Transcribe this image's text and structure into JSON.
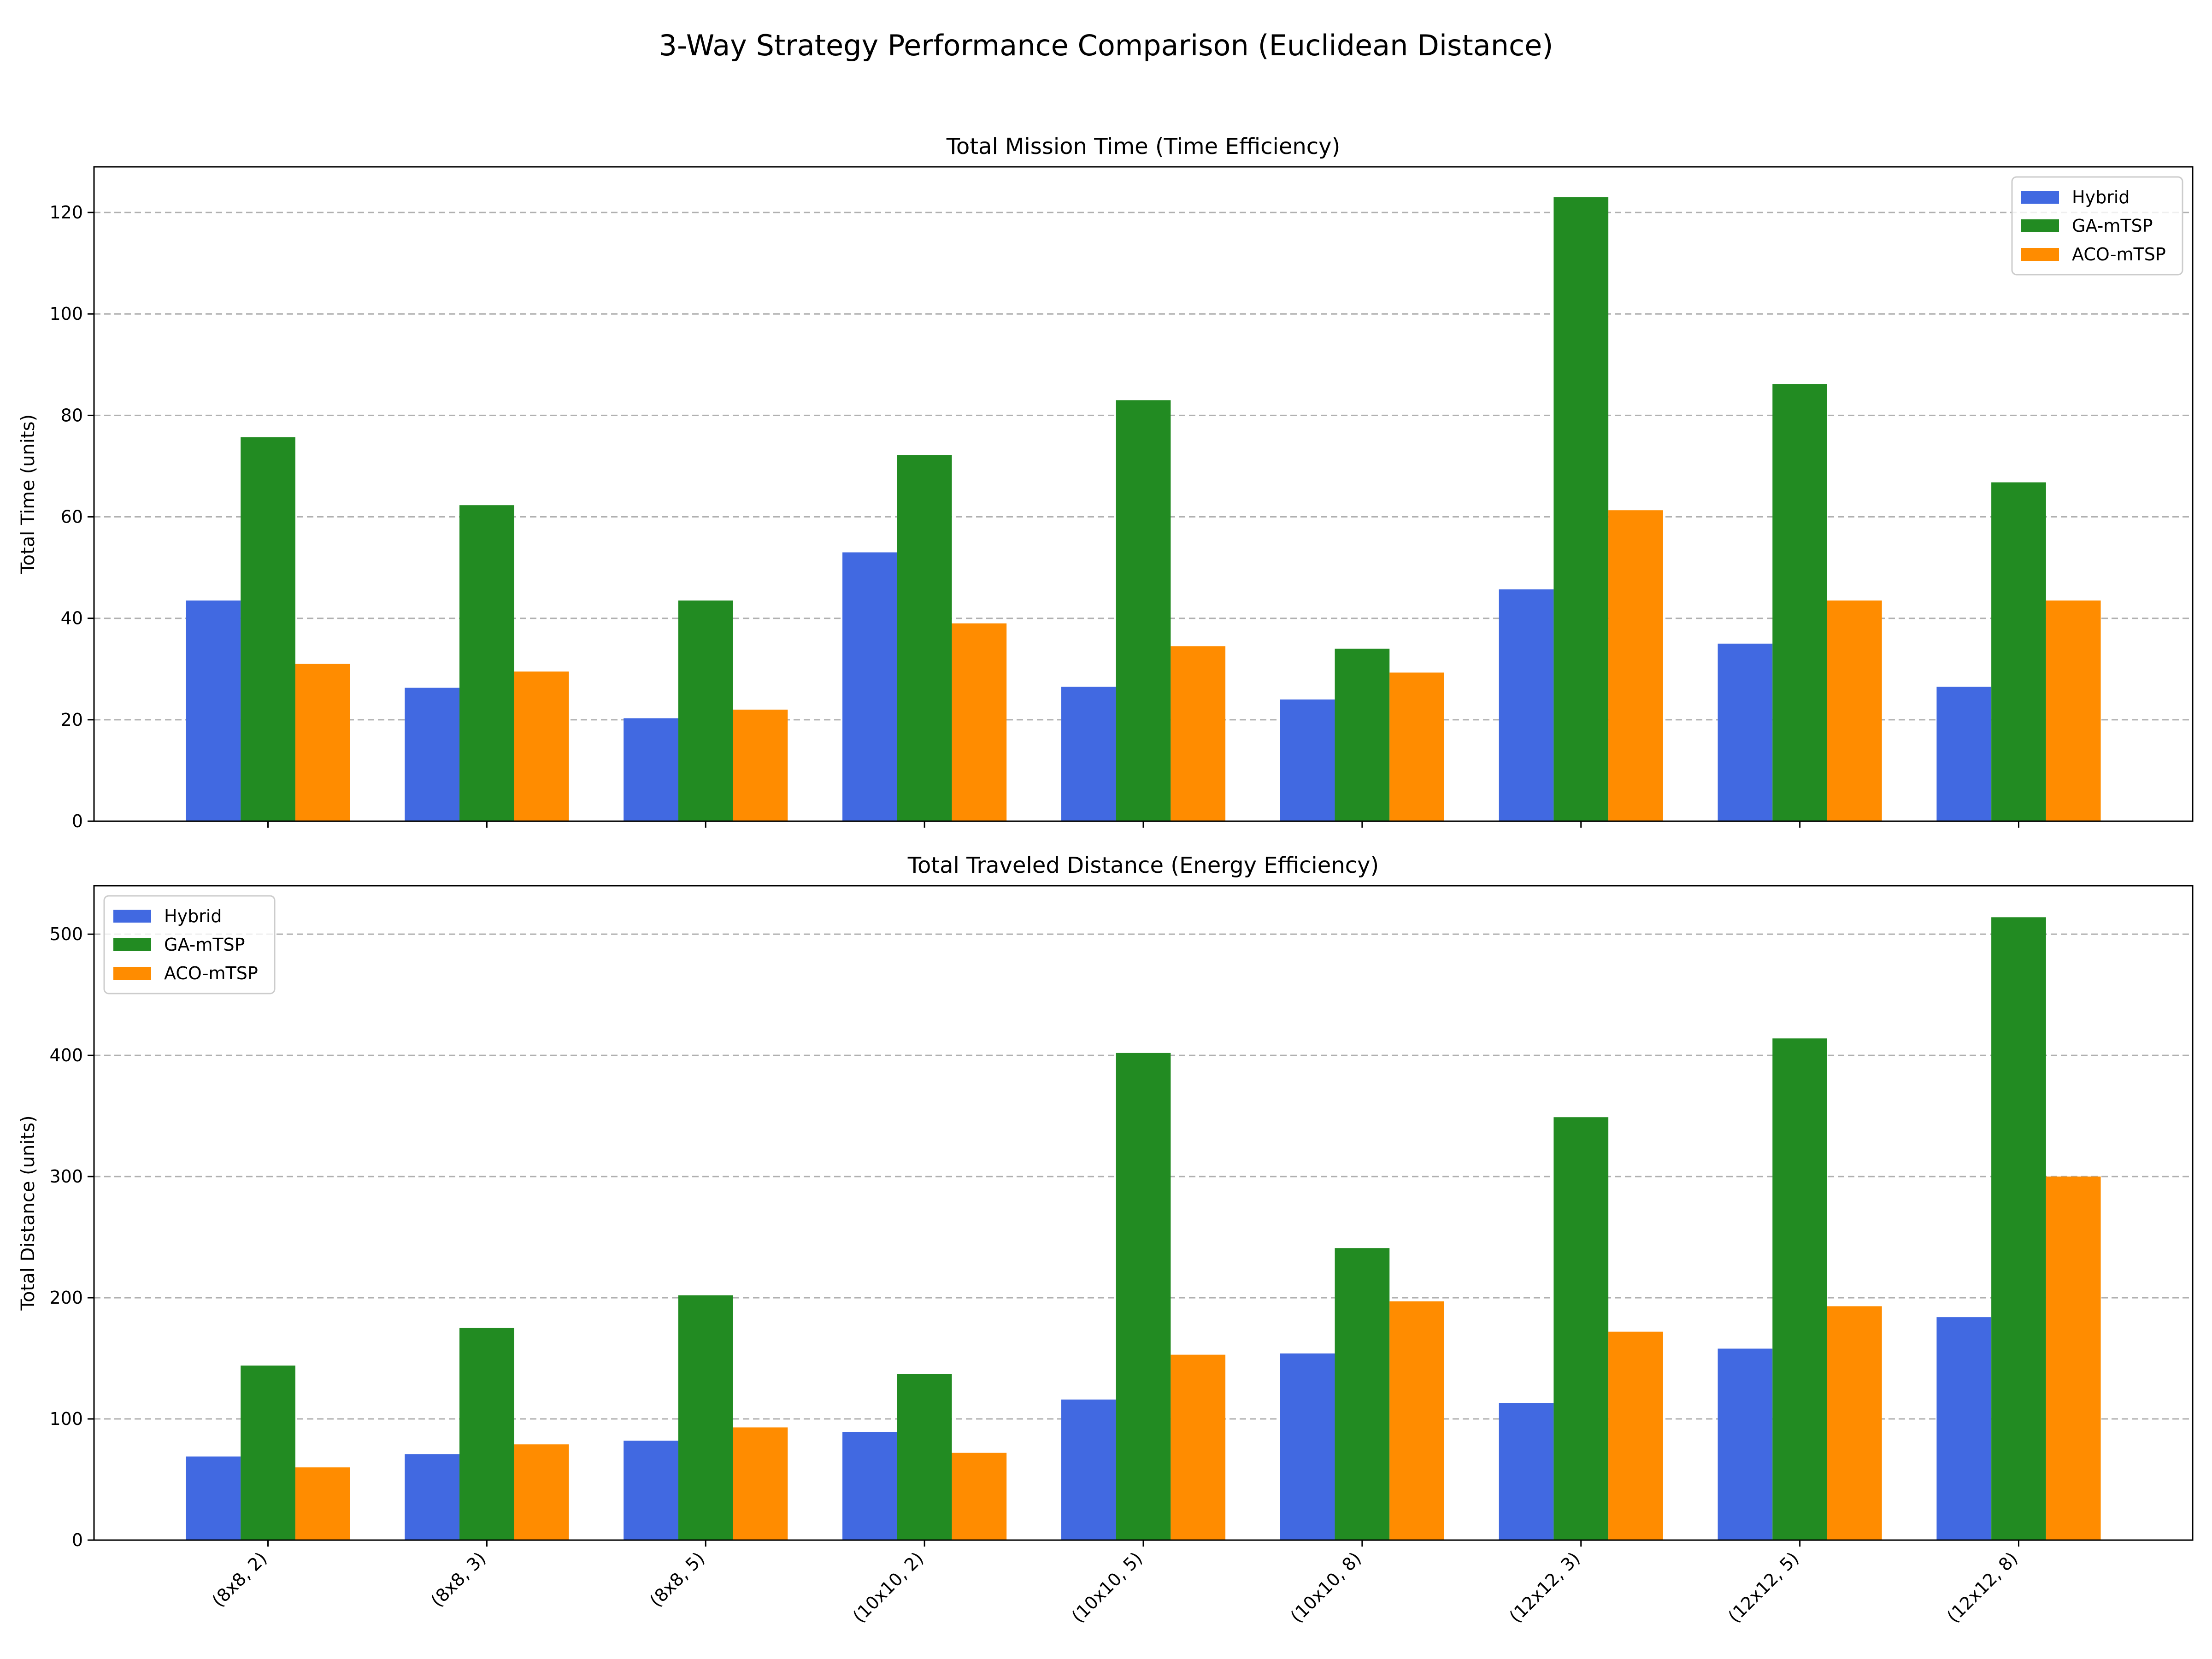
{
  "suptitle": "3-Way Strategy Performance Comparison (Euclidean Distance)",
  "chart_data": [
    {
      "type": "bar",
      "title": "Total Mission Time (Time Efficiency)",
      "xlabel": "",
      "ylabel": "Total Time (units)",
      "ylim": [
        0,
        129
      ],
      "yticks": [
        0,
        20,
        40,
        60,
        80,
        100,
        120
      ],
      "grid": "y",
      "legend_position": "upper right",
      "show_xticklabels": false,
      "categories": [
        "(8x8, 2)",
        "(8x8, 3)",
        "(8x8, 5)",
        "(10x10, 2)",
        "(10x10, 5)",
        "(10x10, 8)",
        "(12x12, 3)",
        "(12x12, 5)",
        "(12x12, 8)"
      ],
      "series": [
        {
          "name": "Hybrid",
          "color": "#4169e1",
          "values": [
            43.5,
            26.3,
            20.3,
            53.0,
            26.5,
            24.0,
            45.7,
            35.0,
            26.5
          ]
        },
        {
          "name": "GA-mTSP",
          "color": "#228b22",
          "values": [
            75.7,
            62.3,
            43.5,
            72.2,
            83.0,
            34.0,
            123.0,
            86.2,
            66.8
          ]
        },
        {
          "name": "ACO-mTSP",
          "color": "#ff8c00",
          "values": [
            31.0,
            29.5,
            22.0,
            39.0,
            34.5,
            29.3,
            61.3,
            43.5,
            43.5
          ]
        }
      ]
    },
    {
      "type": "bar",
      "title": "Total Traveled Distance (Energy Efficiency)",
      "xlabel": "",
      "ylabel": "Total Distance (units)",
      "ylim": [
        0,
        540
      ],
      "yticks": [
        0,
        100,
        200,
        300,
        400,
        500
      ],
      "grid": "y",
      "legend_position": "upper left",
      "show_xticklabels": true,
      "categories": [
        "(8x8, 2)",
        "(8x8, 3)",
        "(8x8, 5)",
        "(10x10, 2)",
        "(10x10, 5)",
        "(10x10, 8)",
        "(12x12, 3)",
        "(12x12, 5)",
        "(12x12, 8)"
      ],
      "series": [
        {
          "name": "Hybrid",
          "color": "#4169e1",
          "values": [
            69,
            71,
            82,
            89,
            116,
            154,
            113,
            158,
            184
          ]
        },
        {
          "name": "GA-mTSP",
          "color": "#228b22",
          "values": [
            144,
            175,
            202,
            137,
            402,
            241,
            349,
            414,
            514
          ]
        },
        {
          "name": "ACO-mTSP",
          "color": "#ff8c00",
          "values": [
            60,
            79,
            93,
            72,
            153,
            197,
            172,
            193,
            300
          ]
        }
      ]
    }
  ]
}
